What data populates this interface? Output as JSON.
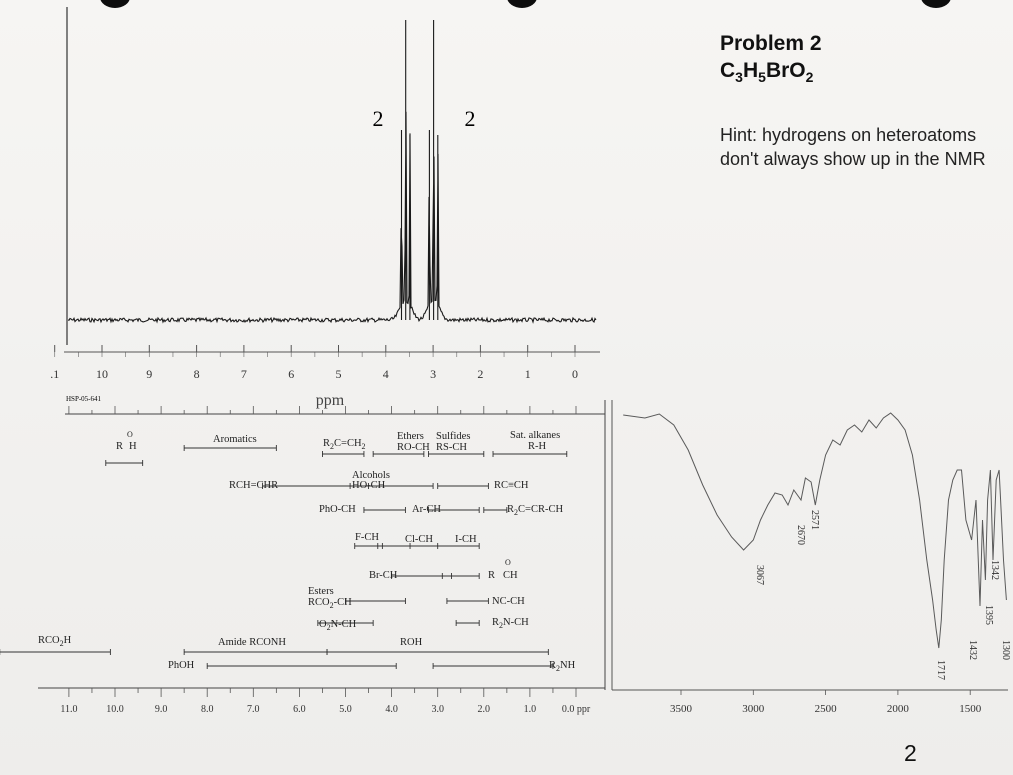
{
  "problem": {
    "title": "Problem 2",
    "formula_parts": [
      "C",
      "3",
      "H",
      "5",
      "BrO",
      "2"
    ],
    "hint": "Hint: hydrogens on heteroatoms don't always show up in the NMR",
    "page_number": "2"
  },
  "chart_data": [
    {
      "type": "line",
      "name": "1H NMR spectrum",
      "code": "HSP-05-641",
      "xlabel": "ppm",
      "xlim": [
        11,
        -0.5
      ],
      "xticks": [
        ".1",
        "10",
        "9",
        "8",
        "7",
        "6",
        "5",
        "4",
        "3",
        "2",
        "1",
        "0"
      ],
      "peaks": [
        {
          "center_ppm": 3.58,
          "multiplicity": "triplet",
          "integration": "2"
        },
        {
          "center_ppm": 2.99,
          "multiplicity": "triplet",
          "integration": "2"
        }
      ]
    },
    {
      "type": "table",
      "name": "chemical shift correlation chart",
      "xticks": [
        "11.0",
        "10.0",
        "9.0",
        "8.0",
        "7.0",
        "6.0",
        "5.0",
        "4.0",
        "3.0",
        "2.0",
        "1.0",
        "0.0 ppr"
      ],
      "labels": {
        "aldehyde_r": "R",
        "aldehyde_o": "O",
        "aldehyde_h": "H",
        "aromatics": "Aromatics",
        "alkene_r2c": "R",
        "alkene_rest": "C=CH",
        "ethers": "Ethers",
        "ethers_sub": "RO-CH",
        "sulfides": "Sulfides",
        "sulfides_sub": "RS-CH",
        "sat_alkanes": "Sat. alkanes",
        "sat_alkanes_sub": "R-H",
        "rch_chr": "RCH=CHR",
        "alcohols": "Alcohols",
        "alcohols_sub": "HO-CH",
        "alkyne": "RC≡CH",
        "pho_ch": "PhO-CH",
        "ar_ch": "Ar-CH",
        "allylic_r2c": "R",
        "allylic_rest": "C=CR-CH",
        "f_ch": "F-CH",
        "cl_ch": "Cl-CH",
        "i_ch": "I-CH",
        "br_ch": "Br-CH",
        "ketone_r": "R",
        "ketone_o": "O",
        "ketone_ch": "CH",
        "esters": "Esters",
        "esters_sub": "RCO",
        "esters_tail": "-CH",
        "nc_ch": "NC-CH",
        "o2n_a": "O",
        "o2n_b": "N-CH",
        "amine_r2n_a": "R",
        "amine_r2n_b": "N-CH",
        "rco2h_a": "RCO",
        "rco2h_b": "H",
        "amide": "Amide RCONH",
        "roh": "ROH",
        "phoh": "PhOH",
        "r2nh_a": "R",
        "r2nh_b": "NH",
        "sub2": "2"
      }
    },
    {
      "type": "line",
      "name": "IR spectrum",
      "xlim": [
        3900,
        1250
      ],
      "xticks": [
        "3500",
        "3000",
        "2500",
        "2000",
        "1500"
      ],
      "peak_labels": [
        "3067",
        "2670",
        "2571",
        "1717",
        "1432",
        "1395",
        "1342",
        "1300"
      ]
    }
  ]
}
